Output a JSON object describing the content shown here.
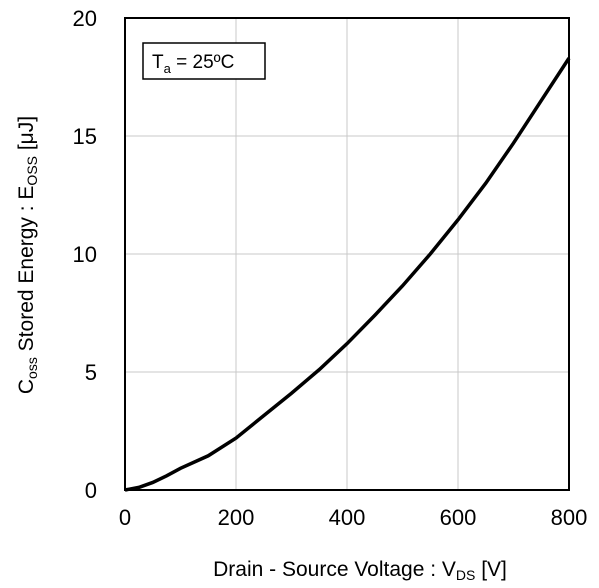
{
  "chart_data": {
    "type": "line",
    "title": "",
    "xlabel": {
      "main": "Drain - Source Voltage : V",
      "sub": "DS",
      "unit": " [V]"
    },
    "ylabel": {
      "pre": "C",
      "pre_sub": "oss",
      "mid": " Stored Energy : E",
      "mid_sub": "OSS",
      "unit": " [μJ]"
    },
    "xlim": [
      0,
      800
    ],
    "ylim": [
      0,
      20
    ],
    "xticks": [
      "0",
      "200",
      "400",
      "600",
      "800"
    ],
    "yticks": [
      "0",
      "5",
      "10",
      "15",
      "20"
    ],
    "grid": true,
    "annotation": {
      "main": "T",
      "sub": "a",
      "rest": " = 25ºC"
    },
    "series": [
      {
        "x": [
          0,
          25,
          50,
          75,
          100,
          150,
          200,
          250,
          300,
          350,
          400,
          450,
          500,
          550,
          600,
          650,
          700,
          750,
          800
        ],
        "values": [
          0,
          0.11,
          0.32,
          0.6,
          0.92,
          1.45,
          2.2,
          3.15,
          4.1,
          5.1,
          6.2,
          7.4,
          8.65,
          10.0,
          11.45,
          13.0,
          14.7,
          16.5,
          18.3
        ]
      }
    ],
    "line_color": "#000000"
  }
}
